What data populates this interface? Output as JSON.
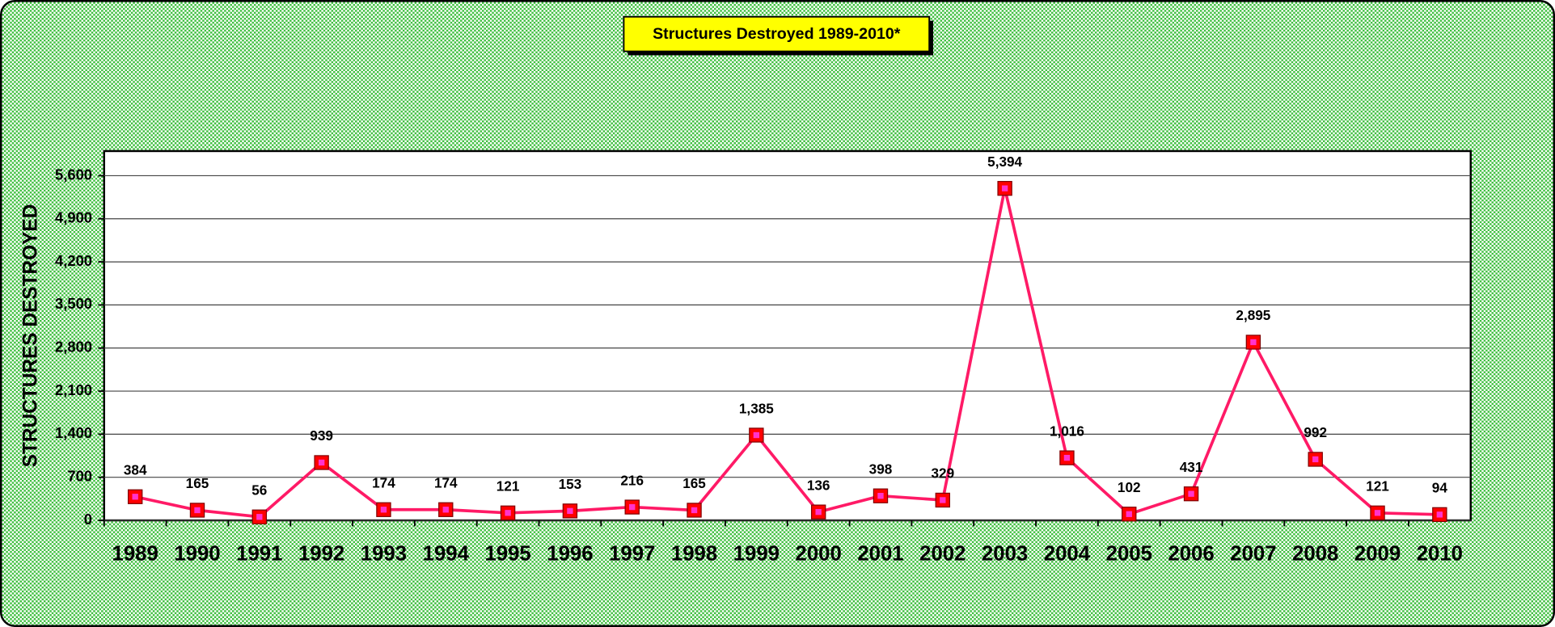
{
  "chart_data": {
    "type": "line",
    "title": "Structures Destroyed 1989-2010*",
    "y_label": "STRUCTURES DESTROYED",
    "categories": [
      "1989",
      "1990",
      "1991",
      "1992",
      "1993",
      "1994",
      "1995",
      "1996",
      "1997",
      "1998",
      "1999",
      "2000",
      "2001",
      "2002",
      "2003",
      "2004",
      "2005",
      "2006",
      "2007",
      "2008",
      "2009",
      "2010"
    ],
    "values": [
      384,
      165,
      56,
      939,
      174,
      174,
      121,
      153,
      216,
      165,
      1385,
      136,
      398,
      329,
      5394,
      1016,
      102,
      431,
      2895,
      992,
      121,
      94
    ],
    "value_labels": [
      "384",
      "165",
      "56",
      "939",
      "174",
      "174",
      "121",
      "153",
      "216",
      "165",
      "1,385",
      "136",
      "398",
      "329",
      "5,394",
      "1,016",
      "102",
      "431",
      "2,895",
      "992",
      "121",
      "94"
    ],
    "color": "#ff1a66",
    "marker_color": "#ff0000",
    "ylim": [
      0,
      6000
    ],
    "yticks": [
      0,
      700,
      {
        "value": 1400,
        "label": "1,400"
      },
      {
        "value": 2100,
        "label": "2,100"
      },
      {
        "value": 2800,
        "label": "2,800"
      },
      {
        "value": 3500,
        "label": "3,500"
      },
      {
        "value": 4200,
        "label": "4,200"
      },
      {
        "value": 4900,
        "label": "4,900"
      },
      {
        "value": 5600,
        "label": "5,600"
      }
    ],
    "grid": true
  }
}
